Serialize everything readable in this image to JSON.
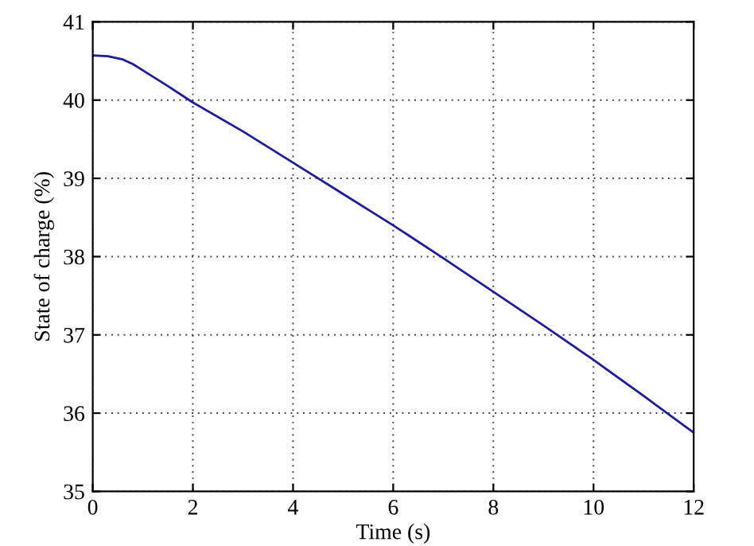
{
  "chart_data": {
    "type": "line",
    "xlabel": "Time (s)",
    "ylabel": "State of charge (%)",
    "x": [
      0,
      0.3,
      0.6,
      0.8,
      1.0,
      1.5,
      2,
      3,
      4,
      5,
      6,
      7,
      8,
      9,
      10,
      11,
      12
    ],
    "series": [
      {
        "color": "#1c1c9c",
        "values": [
          40.57,
          40.56,
          40.52,
          40.46,
          40.38,
          40.18,
          39.97,
          39.6,
          39.2,
          38.8,
          38.4,
          37.98,
          37.55,
          37.12,
          36.68,
          36.22,
          35.75
        ]
      }
    ],
    "xlim": [
      0,
      12
    ],
    "ylim": [
      35,
      41
    ],
    "xticks": [
      0,
      2,
      4,
      6,
      8,
      10,
      12
    ],
    "yticks": [
      35,
      36,
      37,
      38,
      39,
      40,
      41
    ],
    "grid": true,
    "line_style": "solid",
    "marker": "none",
    "legend": false
  }
}
